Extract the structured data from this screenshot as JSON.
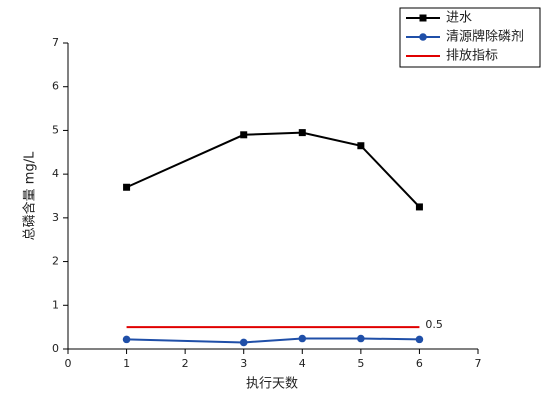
{
  "chart_data": {
    "type": "line",
    "x_label": "执行天数",
    "y_label": "总磷含量 mg/L",
    "x": [
      1,
      3,
      4,
      5,
      6
    ],
    "series": [
      {
        "name": "进水",
        "color": "#000000",
        "marker": "square",
        "values": [
          3.7,
          4.9,
          4.95,
          4.65,
          3.25
        ]
      },
      {
        "name": "清源牌除磷剂",
        "color": "#1f4fa8",
        "marker": "circle",
        "values": [
          0.22,
          0.15,
          0.24,
          0.24,
          0.22
        ]
      },
      {
        "name": "排放指标",
        "color": "#e00000",
        "marker": "none",
        "values": [
          0.5,
          0.5,
          0.5,
          0.5,
          0.5
        ]
      }
    ],
    "xlim": [
      0,
      7
    ],
    "xticks": [
      0,
      1,
      2,
      3,
      4,
      5,
      6,
      7
    ],
    "ylim": [
      0,
      7
    ],
    "yticks": [
      0,
      1,
      2,
      3,
      4,
      5,
      6,
      7
    ],
    "grid": false,
    "legend": "top-right"
  }
}
